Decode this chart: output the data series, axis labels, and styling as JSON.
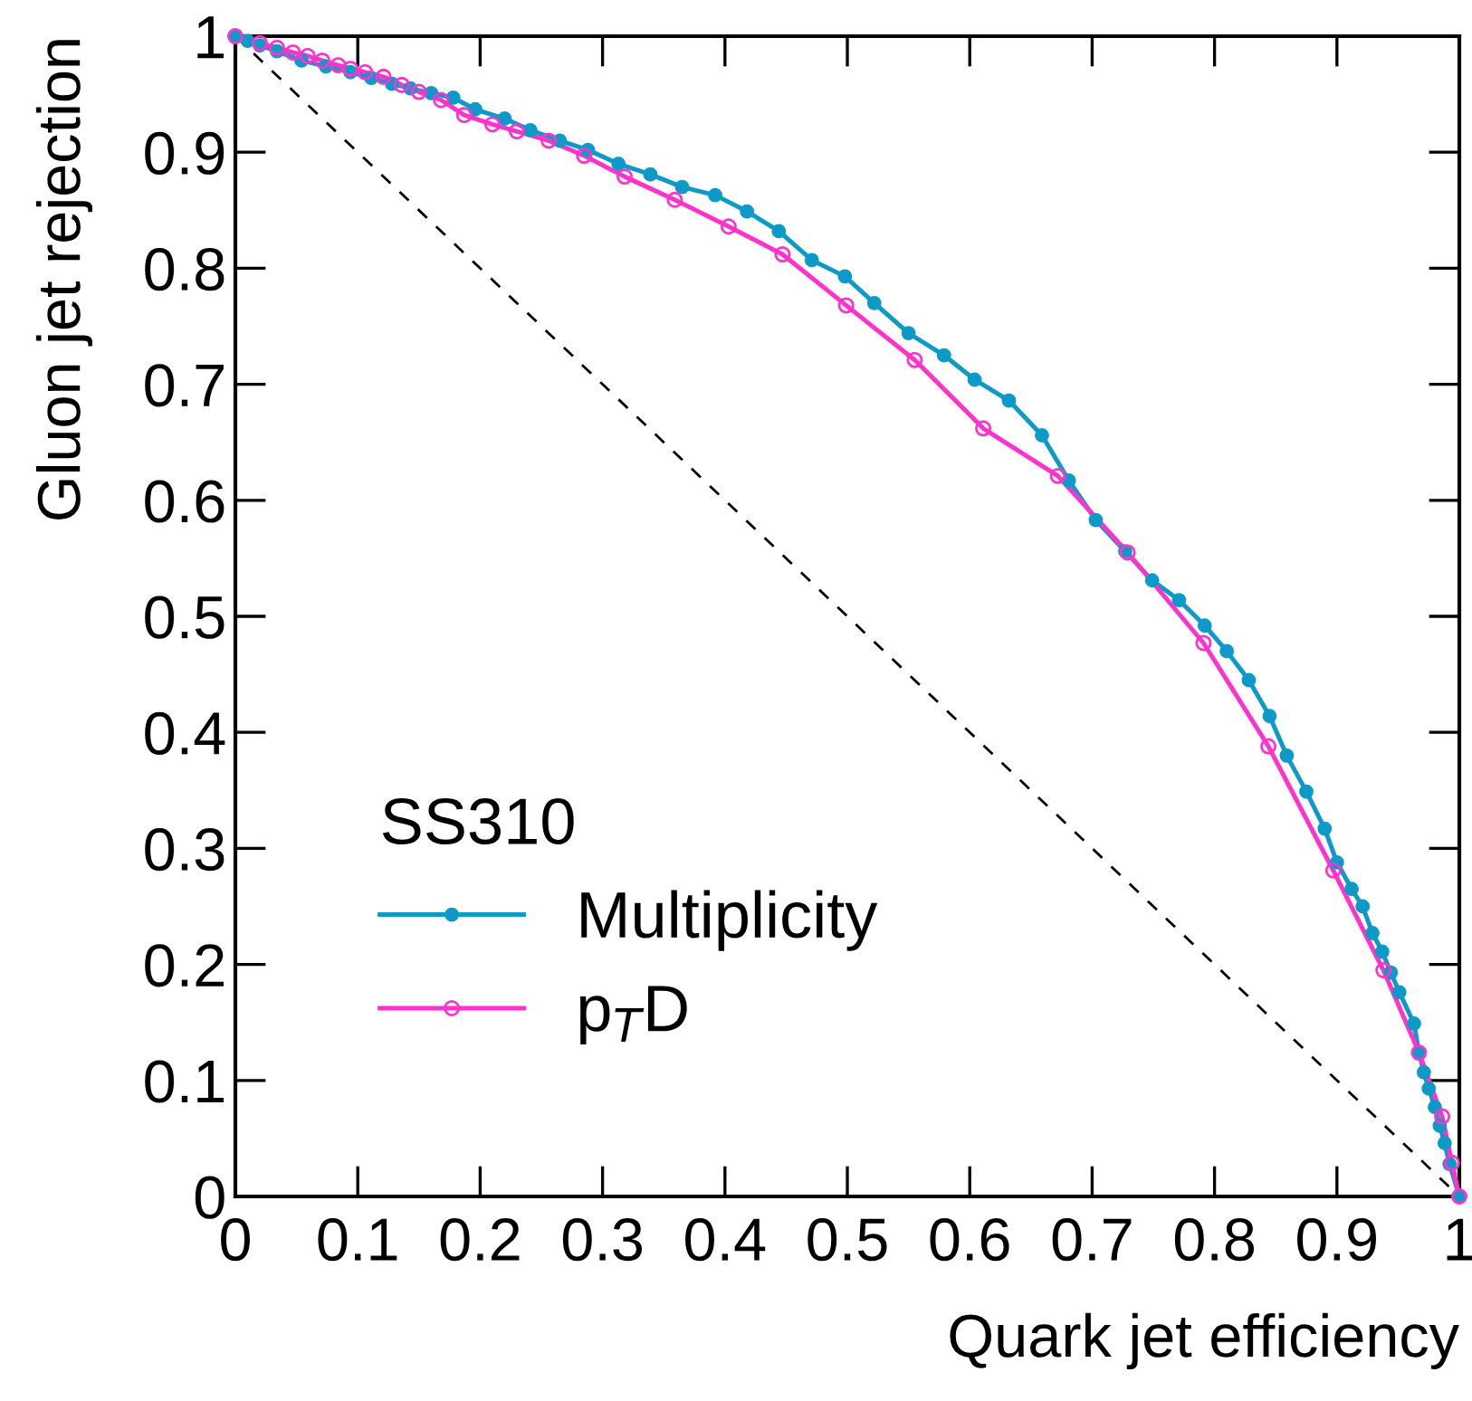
{
  "chart_data": {
    "type": "line",
    "xlabel": "Quark jet efficiency",
    "ylabel": "Gluon jet rejection",
    "legend_title": "SS310",
    "legend": "bottom left",
    "grid": false,
    "xlim": [
      0,
      1
    ],
    "ylim": [
      0,
      1
    ],
    "xticks": [
      0,
      0.1,
      0.2,
      0.3,
      0.4,
      0.5,
      0.6,
      0.7,
      0.8,
      0.9,
      1
    ],
    "yticks": [
      0,
      0.1,
      0.2,
      0.3,
      0.4,
      0.5,
      0.6,
      0.7,
      0.8,
      0.9,
      1
    ],
    "series": [
      {
        "name": "Multiplicity",
        "color": "#0e9ac8",
        "marker": "circle",
        "line_style": "solid",
        "x": [
          0,
          0.01,
          0.02,
          0.034,
          0.054,
          0.074,
          0.094,
          0.111,
          0.128,
          0.143,
          0.16,
          0.178,
          0.196,
          0.22,
          0.241,
          0.265,
          0.288,
          0.313,
          0.339,
          0.365,
          0.392,
          0.418,
          0.444,
          0.471,
          0.498,
          0.522,
          0.55,
          0.579,
          0.604,
          0.632,
          0.659,
          0.681,
          0.703,
          0.727,
          0.749,
          0.771,
          0.792,
          0.81,
          0.828,
          0.845,
          0.859,
          0.875,
          0.89,
          0.9,
          0.912,
          0.921,
          0.929,
          0.937,
          0.944,
          0.951,
          0.963,
          0.967,
          0.971,
          0.975,
          0.98,
          0.984,
          0.988,
          0.992,
          1
        ],
        "values": [
          1,
          0.996,
          0.992,
          0.987,
          0.979,
          0.974,
          0.969,
          0.964,
          0.959,
          0.955,
          0.951,
          0.947,
          0.937,
          0.929,
          0.919,
          0.91,
          0.902,
          0.89,
          0.881,
          0.87,
          0.863,
          0.849,
          0.832,
          0.807,
          0.793,
          0.77,
          0.744,
          0.725,
          0.704,
          0.686,
          0.656,
          0.617,
          0.583,
          0.556,
          0.531,
          0.514,
          0.492,
          0.47,
          0.445,
          0.414,
          0.38,
          0.349,
          0.317,
          0.288,
          0.265,
          0.25,
          0.227,
          0.211,
          0.193,
          0.176,
          0.149,
          0.124,
          0.107,
          0.093,
          0.077,
          0.061,
          0.046,
          0.028,
          0
        ]
      },
      {
        "name": "p$_{T}$D",
        "color": "#ff33cc",
        "marker": "circle",
        "line_style": "solid",
        "x": [
          0,
          0.02,
          0.034,
          0.047,
          0.059,
          0.071,
          0.084,
          0.094,
          0.106,
          0.121,
          0.136,
          0.15,
          0.168,
          0.187,
          0.21,
          0.23,
          0.256,
          0.285,
          0.318,
          0.359,
          0.403,
          0.447,
          0.499,
          0.555,
          0.611,
          0.672,
          0.729,
          0.791,
          0.844,
          0.897,
          0.938,
          0.967,
          0.986,
          0.994,
          1
        ],
        "values": [
          1,
          0.994,
          0.99,
          0.986,
          0.983,
          0.979,
          0.975,
          0.972,
          0.969,
          0.965,
          0.958,
          0.952,
          0.945,
          0.932,
          0.924,
          0.918,
          0.91,
          0.897,
          0.879,
          0.859,
          0.836,
          0.812,
          0.768,
          0.721,
          0.662,
          0.621,
          0.555,
          0.477,
          0.388,
          0.281,
          0.195,
          0.124,
          0.069,
          0.029,
          0
        ]
      },
      {
        "color": "#000000",
        "marker": "none",
        "line_style": "dashed",
        "x": [
          0,
          1
        ],
        "values": [
          1,
          0
        ]
      }
    ]
  }
}
